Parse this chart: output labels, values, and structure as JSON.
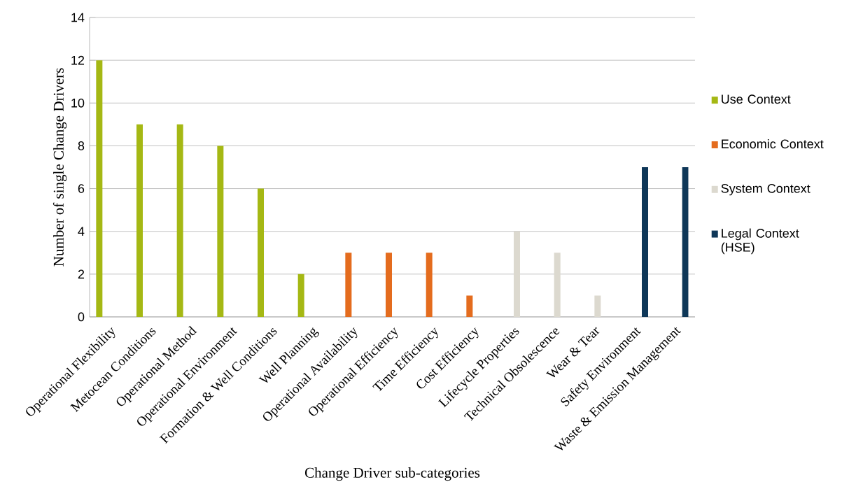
{
  "chart_data": {
    "type": "bar",
    "xlabel": "Change Driver sub-categories",
    "ylabel": "Number of single Change Drivers",
    "categories": [
      "Operational Flexibility",
      "Metocean Conditions",
      "Operational Method",
      "Operational Environment",
      "Formation & Well Conditions",
      "Well Planning",
      "Operational Availability",
      "Operational Efficiency",
      "Time Efficiency",
      "Cost Efficiency",
      "Lifecycle Properties",
      "Technical Obsolescence",
      "Wear & Tear",
      "Safety Environment",
      "Waste & Emission Management"
    ],
    "series": [
      {
        "name": "Use Context",
        "color": "#a5b814",
        "values": [
          12,
          9,
          9,
          8,
          6,
          2,
          null,
          null,
          null,
          null,
          null,
          null,
          null,
          null,
          null
        ]
      },
      {
        "name": "Economic Context",
        "color": "#e46c1e",
        "values": [
          null,
          null,
          null,
          null,
          null,
          null,
          3,
          3,
          3,
          1,
          null,
          null,
          null,
          null,
          null
        ]
      },
      {
        "name": "System Context",
        "color": "#dcd9cf",
        "values": [
          null,
          null,
          null,
          null,
          null,
          null,
          null,
          null,
          null,
          null,
          4,
          3,
          1,
          null,
          null
        ]
      },
      {
        "name": "Legal Context (HSE)",
        "color": "#0e3758",
        "values": [
          null,
          null,
          null,
          null,
          null,
          null,
          null,
          null,
          null,
          null,
          null,
          null,
          null,
          7,
          7
        ]
      }
    ],
    "ylim": [
      0,
      14
    ],
    "yticks": [
      0,
      2,
      4,
      6,
      8,
      10,
      12,
      14
    ],
    "grid": "y",
    "legend": "right"
  }
}
